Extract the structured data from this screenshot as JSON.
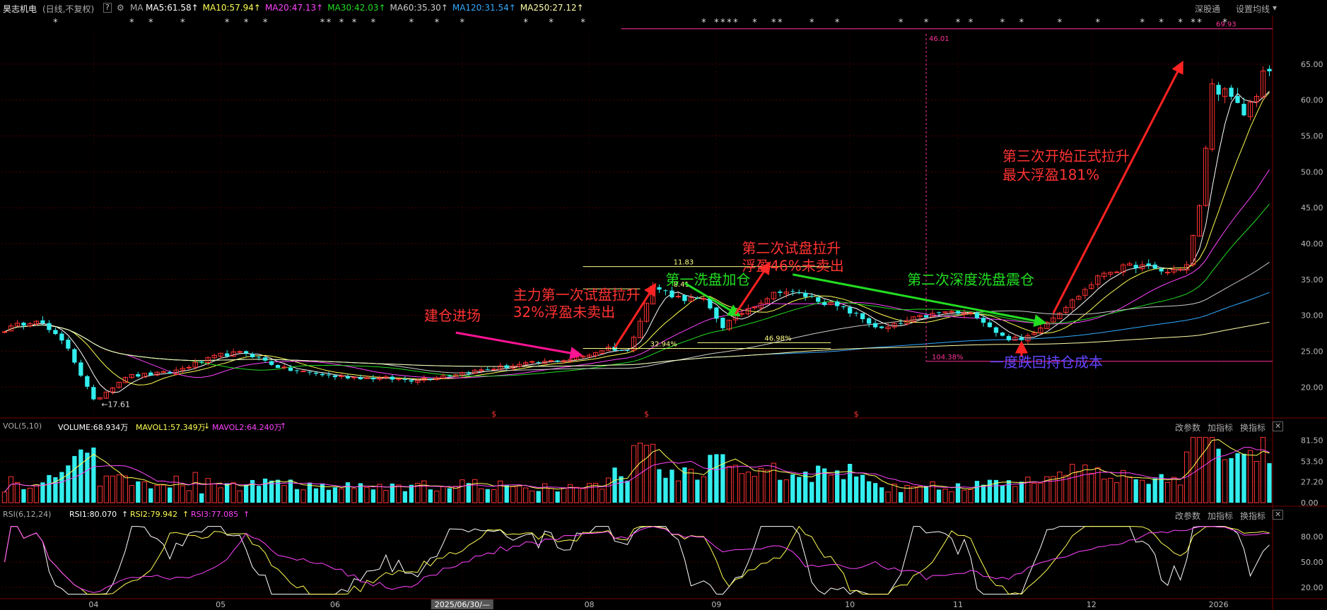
{
  "header": {
    "stock_name": "昊志机电",
    "mode": "(日线,不复权)",
    "help_icon": "?",
    "gear_icon": "⚙",
    "ma_label": "MA",
    "ma": [
      {
        "label": "MA5:61.58",
        "color": "#ffffff",
        "arrow": "↑"
      },
      {
        "label": "MA10:57.94",
        "color": "#ffff55",
        "arrow": "↑"
      },
      {
        "label": "MA20:47.13",
        "color": "#ff44ff",
        "arrow": "↑"
      },
      {
        "label": "MA30:42.03",
        "color": "#22dd22",
        "arrow": "↑"
      },
      {
        "label": "MA60:35.30",
        "color": "#cccccc",
        "arrow": "↑"
      },
      {
        "label": "MA120:31.54",
        "color": "#33aaff",
        "arrow": "↑"
      },
      {
        "label": "MA250:27.12",
        "color": "#ffffaa",
        "arrow": "↑"
      }
    ],
    "right_links": [
      "深股通",
      "设置均线"
    ],
    "right_arrow": "▾"
  },
  "vol_panel": {
    "label": "VOL(5,10)",
    "volume": "VOLUME:68.934万",
    "mavol1": "MAVOL1:57.349万",
    "mavol1_arrow": "↓",
    "mavol2": "MAVOL2:64.240万",
    "mavol2_arrow": "↑",
    "buttons": [
      "改参数",
      "加指标",
      "换指标"
    ],
    "close": "✕"
  },
  "rsi_panel": {
    "label": "RSI(6,12,24)",
    "rsi1": "RSI1:80.070",
    "rsi1_arrow": "↑",
    "rsi2": "RSI2:79.942",
    "rsi2_arrow": "↑",
    "rsi3": "RSI3:77.085",
    "rsi3_arrow": "↑",
    "buttons": [
      "改参数",
      "加指标",
      "换指标"
    ],
    "close": "✕"
  },
  "chart_data": {
    "type": "candlestick",
    "price_axis": {
      "min": 16.5,
      "max": 70,
      "ticks": [
        20,
        25,
        30,
        35,
        40,
        45,
        50,
        55,
        60,
        65
      ],
      "tick_labels": [
        "20.00",
        "25.00",
        "30.00",
        "35.00",
        "40.00",
        "45.00",
        "50.00",
        "55.00",
        "60.00",
        "65.00"
      ]
    },
    "volume_axis": {
      "max": 90,
      "ticks": [
        0,
        27.2,
        53.5,
        81.5
      ],
      "tick_labels": [
        "0.00",
        "27.20",
        "53.50",
        "81.50"
      ]
    },
    "rsi_axis": {
      "min": 10,
      "max": 95,
      "ticks": [
        20,
        50,
        80
      ],
      "tick_labels": [
        "20.00",
        "50.00",
        "80.00"
      ]
    },
    "x_labels": [
      "04",
      "05",
      "06",
      "2025/06/30/—",
      "08",
      "09",
      "10",
      "11",
      "12",
      "2026"
    ],
    "x_label_day": [
      14,
      34,
      52,
      72,
      92,
      112,
      133,
      150,
      171,
      191
    ],
    "cursor_date": "2025/06/30/—",
    "key_points": [
      {
        "day": 0,
        "price": 28
      },
      {
        "day": 5,
        "price": 29.5
      },
      {
        "day": 10,
        "price": 25.5
      },
      {
        "day": 14,
        "price": 18
      },
      {
        "day": 19,
        "price": 21.5
      },
      {
        "day": 26,
        "price": 22
      },
      {
        "day": 34,
        "price": 24.5
      },
      {
        "day": 38,
        "price": 24.8
      },
      {
        "day": 44,
        "price": 22.5
      },
      {
        "day": 52,
        "price": 21.5
      },
      {
        "day": 60,
        "price": 21.2
      },
      {
        "day": 64,
        "price": 21
      },
      {
        "day": 72,
        "price": 22
      },
      {
        "day": 80,
        "price": 23
      },
      {
        "day": 90,
        "price": 24
      },
      {
        "day": 95,
        "price": 25.5
      },
      {
        "day": 98,
        "price": 25
      },
      {
        "day": 102,
        "price": 34
      },
      {
        "day": 106,
        "price": 32.5
      },
      {
        "day": 110,
        "price": 32
      },
      {
        "day": 113,
        "price": 28.5
      },
      {
        "day": 117,
        "price": 31
      },
      {
        "day": 122,
        "price": 33.5
      },
      {
        "day": 127,
        "price": 32.5
      },
      {
        "day": 133,
        "price": 30.5
      },
      {
        "day": 138,
        "price": 28
      },
      {
        "day": 143,
        "price": 29.5
      },
      {
        "day": 148,
        "price": 30.5
      },
      {
        "day": 153,
        "price": 30
      },
      {
        "day": 157,
        "price": 27
      },
      {
        "day": 160,
        "price": 26.5
      },
      {
        "day": 163,
        "price": 28.5
      },
      {
        "day": 168,
        "price": 32
      },
      {
        "day": 173,
        "price": 36
      },
      {
        "day": 178,
        "price": 37
      },
      {
        "day": 183,
        "price": 36
      },
      {
        "day": 186,
        "price": 37
      },
      {
        "day": 188,
        "price": 45
      },
      {
        "day": 190,
        "price": 62
      },
      {
        "day": 192,
        "price": 61
      },
      {
        "day": 195,
        "price": 58
      },
      {
        "day": 197,
        "price": 61
      },
      {
        "day": 198,
        "price": 64
      }
    ],
    "horizontal_lines": [
      {
        "price": 69.93,
        "label": "69.93",
        "from_day": 97
      },
      {
        "price": 23.6,
        "label": "104.38%",
        "from_day": 145
      },
      {
        "price": 36.8,
        "label": "11.83",
        "from_day": 91,
        "to_day": 130
      },
      {
        "price": 33.7,
        "label": "8.41",
        "from_day": 91,
        "to_day": 100
      },
      {
        "price": 25.4,
        "label": "32.94%",
        "from_day": 91,
        "to_day": 130
      },
      {
        "price": 26.2,
        "label": "46.98%",
        "from_day": 109,
        "to_day": 130
      }
    ],
    "vertical_markers": [
      {
        "day": 145,
        "label": "46.01"
      }
    ],
    "low_marker": {
      "day": 15,
      "price": 17.61,
      "label": "17.61"
    },
    "high_marker": {
      "day": 198,
      "price": 69.93,
      "label": "69.93"
    },
    "annotations": [
      {
        "text": "建仓进场",
        "color": "#ff3333",
        "day": 66,
        "price": 29.3
      },
      {
        "text": "主力第一次试盘拉升",
        "color": "#ff3333",
        "day": 80,
        "price": 32.2
      },
      {
        "text": "32%浮盈未卖出",
        "color": "#ff3333",
        "day": 80,
        "price": 29.8
      },
      {
        "text": "第二次试盘拉升",
        "color": "#ff3333",
        "day": 116,
        "price": 38.7
      },
      {
        "text": "浮盈46%未卖出",
        "color": "#ff3333",
        "day": 116,
        "price": 36.2
      },
      {
        "text": "第一洗盘加仓",
        "color": "#22dd22",
        "day": 104,
        "price": 34.3
      },
      {
        "text": "第二次深度洗盘震仓",
        "color": "#22dd22",
        "day": 142,
        "price": 34.3
      },
      {
        "text": "第三次开始正式拉升",
        "color": "#ff3333",
        "day": 157,
        "price": 51.5
      },
      {
        "text": "最大浮盈181%",
        "color": "#ff3333",
        "day": 157,
        "price": 48.9
      },
      {
        "text": "一度跌回持仓成本",
        "color": "#6644ff",
        "day": 155,
        "price": 22.8
      }
    ],
    "arrows": [
      {
        "color": "#ff1493",
        "from": [
          71,
          27.6
        ],
        "to": [
          90,
          24.6
        ]
      },
      {
        "color": "#ff2222",
        "from": [
          96,
          25.5
        ],
        "to": [
          102,
          33.8
        ]
      },
      {
        "color": "#22dd22",
        "from": [
          107,
          34.5
        ],
        "to": [
          115,
          30.3
        ]
      },
      {
        "color": "#ff2222",
        "from": [
          115,
          30.2
        ],
        "to": [
          120,
          36.8
        ]
      },
      {
        "color": "#22dd22",
        "from": [
          124,
          35.7
        ],
        "to": [
          163,
          29.1
        ]
      },
      {
        "color": "#ff2222",
        "from": [
          165,
          30.3
        ],
        "to": [
          185,
          64.7
        ]
      },
      {
        "color": "#ff2222",
        "from": [
          160,
          24.2
        ],
        "to": [
          160,
          25.6
        ]
      }
    ],
    "star_days": [
      8,
      20,
      23,
      28,
      35,
      38,
      41,
      50,
      51,
      53,
      55,
      58,
      64,
      68,
      72,
      82,
      86,
      91,
      110,
      112,
      113,
      114,
      115,
      118,
      121,
      122,
      127,
      131,
      141,
      145,
      150,
      152,
      157,
      160,
      166,
      172,
      179,
      182,
      185,
      187,
      188,
      192
    ],
    "dollar_days": [
      77,
      101,
      134
    ]
  }
}
